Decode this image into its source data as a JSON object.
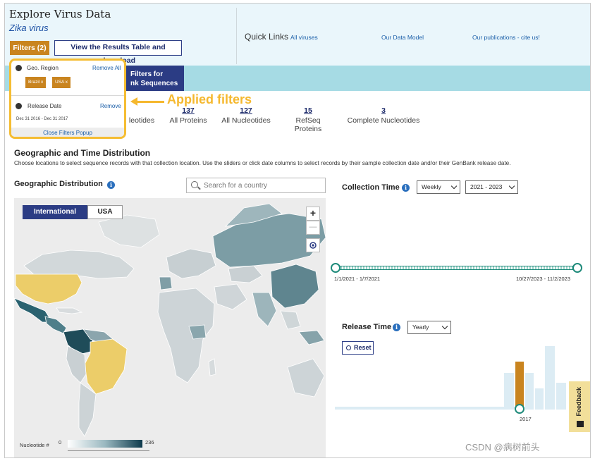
{
  "header": {
    "title": "Explore Virus Data",
    "subtitle": "Zika virus",
    "filters_button": "Filters (2)",
    "results_button": "View the Results Table and download"
  },
  "quick_links": {
    "title": "Quick Links",
    "links": [
      "All viruses",
      "Our Data Model",
      "Our publications - cite us!"
    ]
  },
  "band": {
    "tab_line1": "Filters for",
    "tab_line2": "nk Sequences",
    "color": "#a6dbe4",
    "tab_color": "#2b3c84"
  },
  "counts": [
    {
      "num": "",
      "label": "leotides"
    },
    {
      "num": "137",
      "label": "All Proteins"
    },
    {
      "num": "127",
      "label": "All Nucleotides"
    },
    {
      "num": "15",
      "label": "RefSeq Proteins"
    },
    {
      "num": "3",
      "label": "Complete Nucleotides"
    }
  ],
  "filter_popup": {
    "geo_title": "Geo. Region",
    "geo_remove": "Remove All",
    "chips": [
      "Brazil x",
      "USA x"
    ],
    "release_title": "Release Date",
    "release_remove": "Remove",
    "release_dates": "Dec 31 2016 - Dec 31 2017",
    "close": "Close Filters Popup",
    "highlight_color": "#f5bd33"
  },
  "annotation": {
    "label": "Applied filters"
  },
  "distribution": {
    "title": "Geographic and Time Distribution",
    "description": "Choose locations to select sequence records with that collection location. Use the sliders or click date columns to select records by their sample collection date and/or their GenBank release date."
  },
  "geo": {
    "title": "Geographic Distribution",
    "search_placeholder": "Search for a country",
    "toggle_international": "International",
    "toggle_usa": "USA",
    "zoom_in": "+",
    "zoom_out": "—",
    "legend_label": "Nucleotide #",
    "legend_min": "0",
    "legend_max": "236"
  },
  "collection_time": {
    "title": "Collection Time",
    "interval": "Weekly",
    "range": "2021 - 2023",
    "start_label": "1/1/2021 - 1/7/2021",
    "end_label": "10/27/2023 - 11/2/2023"
  },
  "release_time": {
    "title": "Release Time",
    "interval": "Yearly",
    "reset": "Reset",
    "selected_year": "2017"
  },
  "feedback": "Feedback",
  "watermark": "CSDN @病树前头"
}
